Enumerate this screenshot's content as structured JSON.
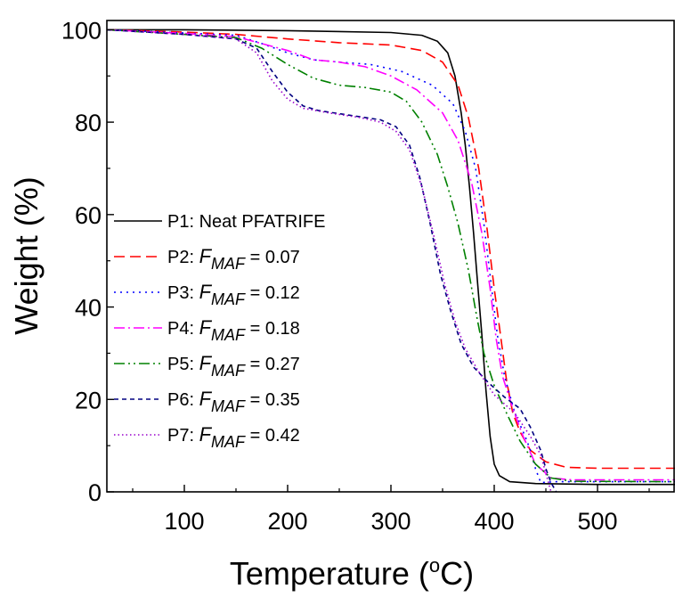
{
  "chart_data": {
    "type": "line",
    "xlabel": "Temperature (",
    "xlabel_unit_sup": "o",
    "xlabel_unit_tail": "C)",
    "ylabel": "Weight (%)",
    "xlim": [
      25,
      575
    ],
    "ylim": [
      0,
      102
    ],
    "x_ticks": [
      100,
      200,
      300,
      400,
      500
    ],
    "y_ticks": [
      0,
      20,
      40,
      60,
      80,
      100
    ],
    "x_tick_labels": [
      "100",
      "200",
      "300",
      "400",
      "500"
    ],
    "y_tick_labels": [
      "0",
      "20",
      "40",
      "60",
      "80",
      "100"
    ],
    "grid": false,
    "legend_position": "left",
    "series": [
      {
        "name": "P1: Neat PFATRIFE",
        "legend_prefix": "P1: Neat PFATRIFE",
        "legend_sub": "",
        "legend_value": "",
        "color": "#000000",
        "dash": "none",
        "points": [
          [
            25,
            100
          ],
          [
            100,
            100
          ],
          [
            200,
            99.8
          ],
          [
            300,
            99.4
          ],
          [
            330,
            98.8
          ],
          [
            345,
            97.5
          ],
          [
            355,
            95
          ],
          [
            362,
            90
          ],
          [
            368,
            82
          ],
          [
            372,
            75
          ],
          [
            376,
            66
          ],
          [
            380,
            56
          ],
          [
            384,
            45
          ],
          [
            388,
            34
          ],
          [
            392,
            22
          ],
          [
            396,
            12
          ],
          [
            400,
            6
          ],
          [
            405,
            3.5
          ],
          [
            415,
            2.2
          ],
          [
            440,
            1.8
          ],
          [
            500,
            1.6
          ],
          [
            575,
            1.6
          ]
        ]
      },
      {
        "name": "P2: F_MAF = 0.07",
        "legend_prefix": "P2: ",
        "legend_sub": "MAF",
        "legend_value": " = 0.07",
        "color": "#ff0000",
        "dash": "12,6",
        "points": [
          [
            25,
            100
          ],
          [
            100,
            99.5
          ],
          [
            150,
            99
          ],
          [
            200,
            98
          ],
          [
            250,
            97.2
          ],
          [
            300,
            96.7
          ],
          [
            330,
            95.5
          ],
          [
            350,
            93
          ],
          [
            365,
            88
          ],
          [
            375,
            81
          ],
          [
            385,
            70
          ],
          [
            393,
            57
          ],
          [
            400,
            44
          ],
          [
            406,
            34
          ],
          [
            412,
            24
          ],
          [
            418,
            17
          ],
          [
            425,
            13
          ],
          [
            435,
            9
          ],
          [
            450,
            6.5
          ],
          [
            470,
            5.3
          ],
          [
            500,
            5.1
          ],
          [
            575,
            5.1
          ]
        ]
      },
      {
        "name": "P3: F_MAF = 0.12",
        "legend_prefix": "P3: ",
        "legend_sub": "MAF",
        "legend_value": " = 0.12",
        "color": "#0000ff",
        "dash": "2,5",
        "points": [
          [
            25,
            100
          ],
          [
            100,
            99.3
          ],
          [
            150,
            98.8
          ],
          [
            175,
            97
          ],
          [
            200,
            95
          ],
          [
            225,
            93.5
          ],
          [
            250,
            93
          ],
          [
            280,
            92.5
          ],
          [
            310,
            91
          ],
          [
            340,
            88
          ],
          [
            360,
            84
          ],
          [
            372,
            78
          ],
          [
            382,
            70
          ],
          [
            390,
            58
          ],
          [
            397,
            45
          ],
          [
            403,
            34
          ],
          [
            410,
            25
          ],
          [
            420,
            17
          ],
          [
            430,
            12
          ],
          [
            435,
            9
          ],
          [
            440,
            5
          ],
          [
            445,
            2
          ],
          [
            460,
            2.2
          ],
          [
            500,
            2.2
          ],
          [
            575,
            2.2
          ]
        ]
      },
      {
        "name": "P4: F_MAF = 0.18",
        "legend_prefix": "P4: ",
        "legend_sub": "MAF",
        "legend_value": " = 0.18",
        "color": "#ff00ff",
        "dash": "12,4,2,4",
        "points": [
          [
            25,
            100
          ],
          [
            100,
            99.2
          ],
          [
            150,
            98.5
          ],
          [
            175,
            97
          ],
          [
            200,
            95.5
          ],
          [
            225,
            93.5
          ],
          [
            250,
            93
          ],
          [
            275,
            92
          ],
          [
            300,
            90
          ],
          [
            325,
            87
          ],
          [
            350,
            82
          ],
          [
            365,
            76
          ],
          [
            378,
            67
          ],
          [
            388,
            56
          ],
          [
            396,
            44
          ],
          [
            402,
            33
          ],
          [
            408,
            25
          ],
          [
            418,
            18
          ],
          [
            428,
            12
          ],
          [
            440,
            6
          ],
          [
            455,
            3
          ],
          [
            475,
            2.6
          ],
          [
            575,
            2.6
          ]
        ]
      },
      {
        "name": "P5: F_MAF = 0.27",
        "legend_prefix": "P5: ",
        "legend_sub": "MAF",
        "legend_value": " = 0.27",
        "color": "#008000",
        "dash": "12,4,2,4,2,4",
        "points": [
          [
            25,
            100
          ],
          [
            100,
            99
          ],
          [
            150,
            98.3
          ],
          [
            175,
            96
          ],
          [
            200,
            92.5
          ],
          [
            225,
            89.5
          ],
          [
            250,
            88
          ],
          [
            275,
            87.5
          ],
          [
            300,
            86.5
          ],
          [
            315,
            84.5
          ],
          [
            330,
            80
          ],
          [
            345,
            73
          ],
          [
            355,
            66
          ],
          [
            365,
            58
          ],
          [
            375,
            48
          ],
          [
            383,
            38
          ],
          [
            390,
            30
          ],
          [
            400,
            23
          ],
          [
            412,
            17
          ],
          [
            425,
            11
          ],
          [
            440,
            6
          ],
          [
            455,
            3
          ],
          [
            475,
            2.3
          ],
          [
            575,
            2.2
          ]
        ]
      },
      {
        "name": "P6: F_MAF = 0.35",
        "legend_prefix": "P6: ",
        "legend_sub": "MAF",
        "legend_value": " = 0.35",
        "color": "#000080",
        "dash": "5,4",
        "points": [
          [
            25,
            100
          ],
          [
            100,
            99
          ],
          [
            150,
            98
          ],
          [
            170,
            96
          ],
          [
            185,
            91
          ],
          [
            200,
            86.5
          ],
          [
            215,
            83.5
          ],
          [
            230,
            82.5
          ],
          [
            260,
            81.5
          ],
          [
            290,
            80.5
          ],
          [
            305,
            79
          ],
          [
            318,
            75
          ],
          [
            328,
            68
          ],
          [
            338,
            58
          ],
          [
            348,
            47
          ],
          [
            358,
            39
          ],
          [
            368,
            32
          ],
          [
            380,
            27
          ],
          [
            395,
            23.5
          ],
          [
            410,
            20.5
          ],
          [
            425,
            18
          ],
          [
            435,
            14
          ],
          [
            445,
            9
          ],
          [
            450,
            5
          ],
          [
            455,
            2
          ],
          [
            460,
            0
          ]
        ]
      },
      {
        "name": "P7: F_MAF = 0.42",
        "legend_prefix": "P7: ",
        "legend_sub": "MAF",
        "legend_value": " = 0.42",
        "color": "#9900cc",
        "dash": "1.5,3",
        "points": [
          [
            25,
            100
          ],
          [
            100,
            99
          ],
          [
            150,
            98
          ],
          [
            170,
            95
          ],
          [
            185,
            89
          ],
          [
            200,
            85
          ],
          [
            215,
            83
          ],
          [
            240,
            82
          ],
          [
            270,
            81
          ],
          [
            290,
            80
          ],
          [
            305,
            78
          ],
          [
            318,
            74
          ],
          [
            330,
            66
          ],
          [
            342,
            55
          ],
          [
            352,
            45
          ],
          [
            362,
            37
          ],
          [
            372,
            31
          ],
          [
            385,
            26
          ],
          [
            400,
            21
          ],
          [
            420,
            17
          ],
          [
            435,
            12
          ],
          [
            445,
            8
          ],
          [
            450,
            4
          ],
          [
            455,
            0
          ]
        ]
      }
    ]
  }
}
